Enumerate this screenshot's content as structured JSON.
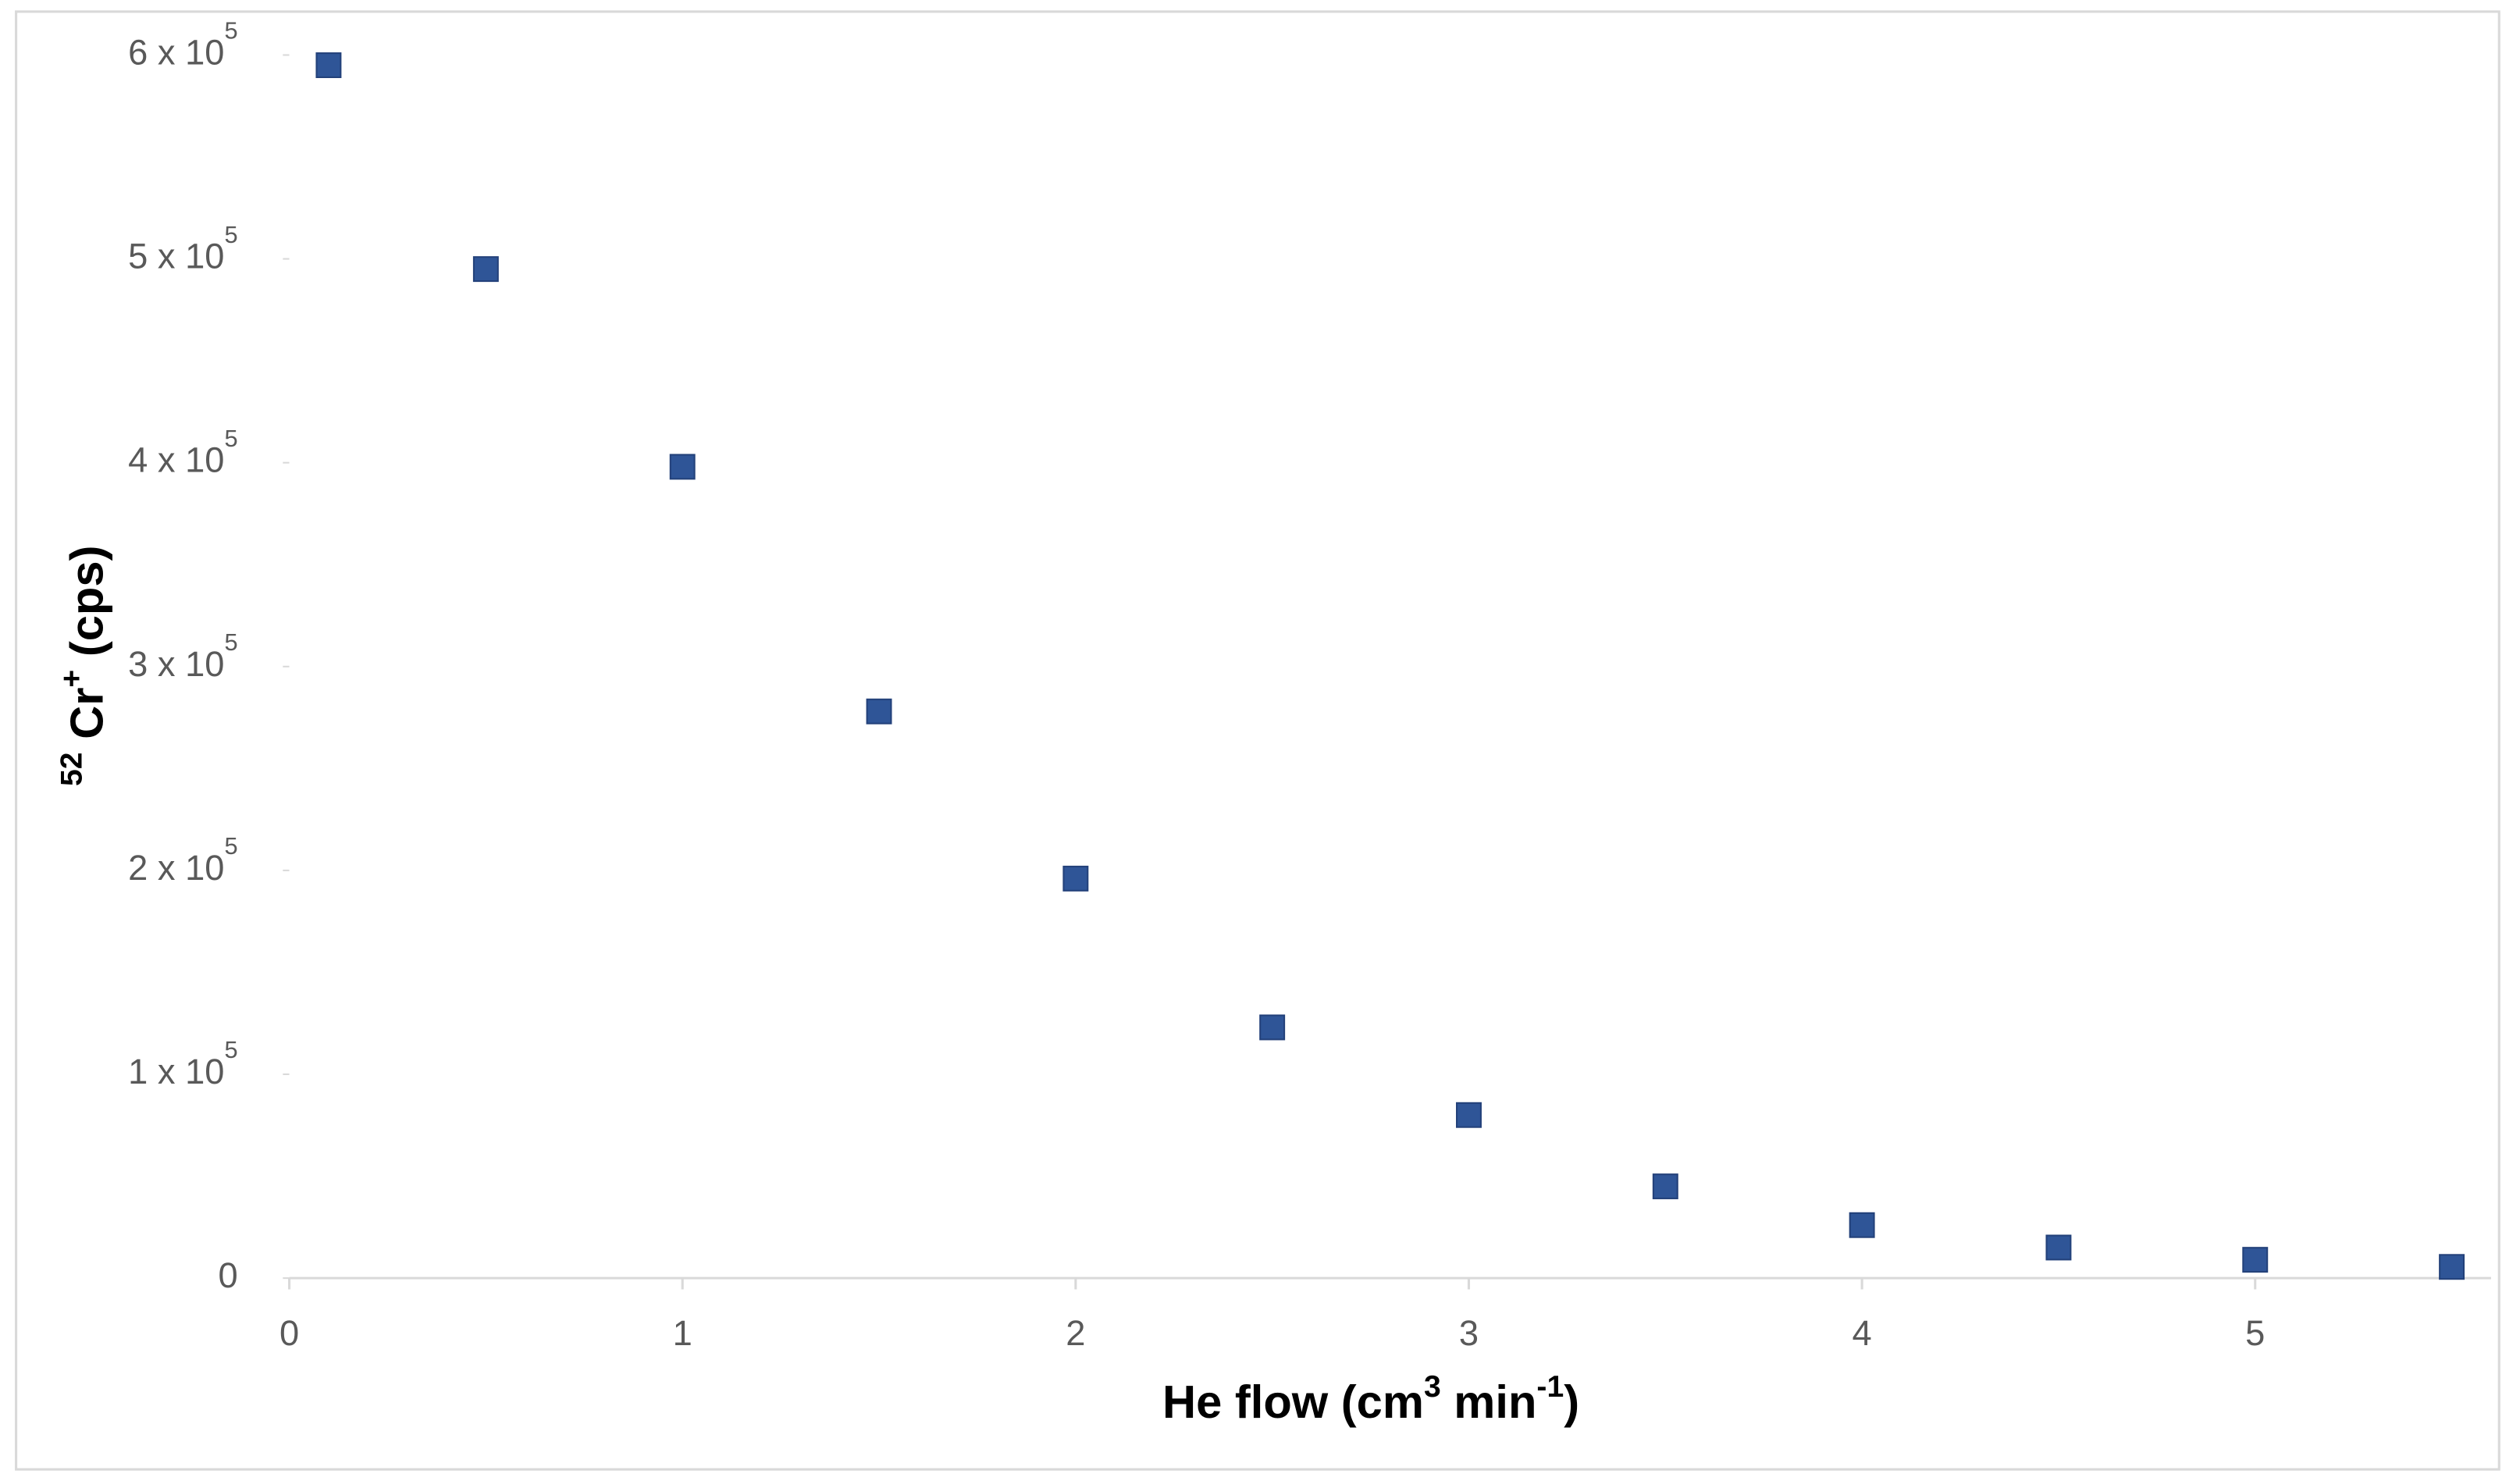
{
  "chart_data": {
    "type": "scatter",
    "xlabel": [
      {
        "text": "He flow (cm"
      },
      {
        "text": "3",
        "sup": true
      },
      {
        "text": " min"
      },
      {
        "text": "-1",
        "sup": true
      },
      {
        "text": ")"
      }
    ],
    "ylabel": [
      {
        "text": "52",
        "sup": true
      },
      {
        "text": " Cr"
      },
      {
        "text": "+",
        "sup": true
      },
      {
        "text": " (cps)"
      }
    ],
    "x": [
      0.1,
      0.5,
      1,
      1.5,
      2,
      2.5,
      3,
      3.5,
      4,
      4.5,
      5,
      5.5
    ],
    "series": [
      {
        "color": "#2f5597",
        "values": [
          595000,
          495000,
          398000,
          278000,
          196000,
          123000,
          80000,
          45000,
          26000,
          15000,
          9000,
          5500
        ]
      }
    ],
    "xlim": [
      0,
      5.6
    ],
    "ylim": [
      0,
      600000
    ],
    "xticks": [
      0,
      1,
      2,
      3,
      4,
      5
    ],
    "yticks": [
      0,
      {
        "value": 100000,
        "label": "1 x 10",
        "exponent": "5"
      },
      {
        "value": 200000,
        "label": "2 x 10",
        "exponent": "5"
      },
      {
        "value": 300000,
        "label": "3 x 10",
        "exponent": "5"
      },
      {
        "value": 400000,
        "label": "4 x 10",
        "exponent": "5"
      },
      {
        "value": 500000,
        "label": "5 x 10",
        "exponent": "5"
      },
      {
        "value": 600000,
        "label": "6 x 10",
        "exponent": "5"
      }
    ],
    "grid": false
  }
}
